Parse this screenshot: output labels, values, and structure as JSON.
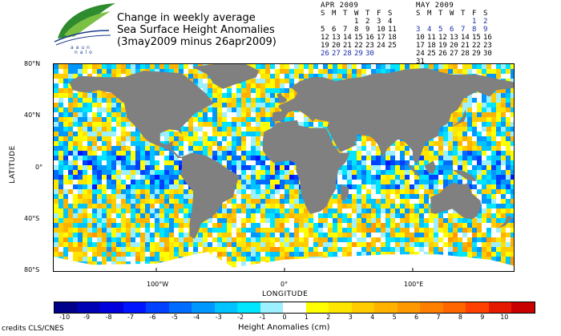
{
  "header": {
    "logo_word": "aaun",
    "logo_word2": "nalo",
    "title_lines": [
      "Change in weekly average",
      "Sea Surface Height Anomalies",
      "(3may2009 minus 26apr2009)"
    ]
  },
  "calendars": [
    {
      "title": "APR 2009",
      "days_header": [
        "S",
        "M",
        "T",
        "W",
        "T",
        "F",
        "S"
      ],
      "rows": [
        [
          "",
          "",
          "",
          "1",
          "2",
          "3",
          "4"
        ],
        [
          "5",
          "6",
          "7",
          "8",
          "9",
          "10",
          "11"
        ],
        [
          "12",
          "13",
          "14",
          "15",
          "16",
          "17",
          "18"
        ],
        [
          "19",
          "20",
          "21",
          "22",
          "23",
          "24",
          "25"
        ],
        [
          "26",
          "27",
          "28",
          "29",
          "30",
          "",
          ""
        ]
      ],
      "highlighted_days": [
        "26",
        "27",
        "28",
        "29",
        "30"
      ]
    },
    {
      "title": "MAY 2009",
      "days_header": [
        "S",
        "M",
        "T",
        "W",
        "T",
        "F",
        "S"
      ],
      "rows": [
        [
          "",
          "",
          "",
          "",
          "",
          "1",
          "2"
        ],
        [
          "3",
          "4",
          "5",
          "6",
          "7",
          "8",
          "9"
        ],
        [
          "10",
          "11",
          "12",
          "13",
          "14",
          "15",
          "16"
        ],
        [
          "17",
          "18",
          "19",
          "20",
          "21",
          "22",
          "23"
        ],
        [
          "24",
          "25",
          "26",
          "27",
          "28",
          "29",
          "30"
        ],
        [
          "31",
          "",
          "",
          "",
          "",
          "",
          ""
        ]
      ],
      "highlighted_days": [
        "1",
        "2",
        "3",
        "4",
        "5",
        "6",
        "7",
        "8",
        "9"
      ]
    }
  ],
  "map": {
    "y_ticks": [
      "80°N",
      "40°N",
      "0°",
      "40°S",
      "80°S"
    ],
    "x_ticks": [
      "100°W",
      "0°",
      "100°E"
    ],
    "ylabel": "LATITUDE",
    "xlabel": "LONGITUDE",
    "land_color": "#808080",
    "ice_color": "#ffffff"
  },
  "colorbar": {
    "labels": [
      "-10",
      "-9",
      "-8",
      "-7",
      "-6",
      "-5",
      "-4",
      "-3",
      "-2",
      "-1",
      "0",
      "1",
      "2",
      "3",
      "4",
      "5",
      "6",
      "7",
      "8",
      "9",
      "10"
    ],
    "colors": [
      "#00008b",
      "#0000b4",
      "#0000dc",
      "#0014ff",
      "#0040ff",
      "#006cff",
      "#0098ff",
      "#00c4ff",
      "#00e6ff",
      "#9cf0ff",
      "#ffffff",
      "#ffff00",
      "#ffe600",
      "#ffcc00",
      "#ffb300",
      "#ff9900",
      "#ff8000",
      "#ff6600",
      "#ff4000",
      "#e61a00",
      "#c80000"
    ],
    "title": "Height Anomalies (cm)"
  },
  "credits": "credits CLS/CNES"
}
